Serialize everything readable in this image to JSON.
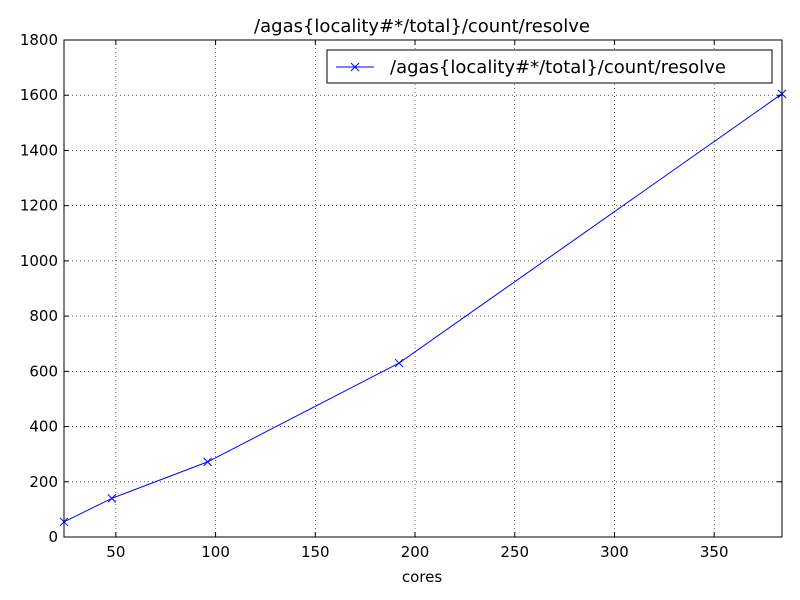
{
  "chart_data": {
    "type": "line",
    "title": "/agas{locality#*/total}/count/resolve",
    "xlabel": "cores",
    "ylabel": "",
    "xlim": [
      24,
      384
    ],
    "ylim": [
      0,
      1800
    ],
    "x_ticks": [
      50,
      100,
      150,
      200,
      250,
      300,
      350
    ],
    "y_ticks": [
      0,
      200,
      400,
      600,
      800,
      1000,
      1200,
      1400,
      1600,
      1800
    ],
    "grid": true,
    "legend_position": "top-right",
    "series": [
      {
        "name": "/agas{locality#*/total}/count/resolve",
        "color": "#0000ff",
        "marker": "x",
        "x": [
          24,
          48,
          96,
          192,
          384
        ],
        "y": [
          55,
          140,
          272,
          630,
          1605
        ]
      }
    ]
  }
}
